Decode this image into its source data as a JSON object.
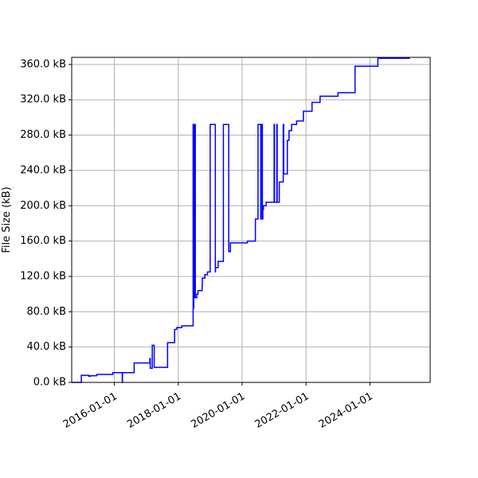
{
  "chart_data": {
    "type": "line",
    "title": "",
    "xlabel": "",
    "ylabel": "File Size (kB)",
    "x_type": "date",
    "xlim": [
      "2014-09-01",
      "2025-11-20"
    ],
    "ylim": [
      0,
      368
    ],
    "grid": true,
    "legend": "none",
    "colors": {
      "line": "#0000ff",
      "grid": "#b0b0b0",
      "axis": "#000000"
    },
    "x_ticks": [
      {
        "value": "2016-01-01",
        "label": "2016-01-01"
      },
      {
        "value": "2018-01-01",
        "label": "2018-01-01"
      },
      {
        "value": "2020-01-01",
        "label": "2020-01-01"
      },
      {
        "value": "2022-01-01",
        "label": "2022-01-01"
      },
      {
        "value": "2024-01-01",
        "label": "2024-01-01"
      }
    ],
    "y_ticks": [
      {
        "value": 0,
        "label": "0.0 kB"
      },
      {
        "value": 40,
        "label": "40.0 kB"
      },
      {
        "value": 80,
        "label": "80.0 kB"
      },
      {
        "value": 120,
        "label": "120.0 kB"
      },
      {
        "value": 160,
        "label": "160.0 kB"
      },
      {
        "value": 200,
        "label": "200.0 kB"
      },
      {
        "value": 240,
        "label": "240.0 kB"
      },
      {
        "value": 280,
        "label": "280.0 kB"
      },
      {
        "value": 320,
        "label": "320.0 kB"
      },
      {
        "value": 360,
        "label": "360.0 kB"
      }
    ],
    "series": [
      {
        "line_style": "step-post",
        "x": [
          "2014-09-01",
          "2014-12-20",
          "2015-03-15",
          "2015-04-01",
          "2015-06-15",
          "2015-12-15",
          "2016-04-01",
          "2016-04-03",
          "2016-08-15",
          "2017-02-10",
          "2017-02-15",
          "2017-03-10",
          "2017-04-01",
          "2017-04-20",
          "2017-09-01",
          "2017-11-20",
          "2017-12-15",
          "2018-02-10",
          "2018-06-20",
          "2018-06-25",
          "2018-06-28",
          "2018-07-01",
          "2018-07-10",
          "2018-07-15",
          "2018-08-01",
          "2018-08-15",
          "2018-10-01",
          "2018-10-03",
          "2018-11-01",
          "2018-12-01",
          "2019-01-01",
          "2019-03-01",
          "2019-03-03",
          "2019-04-01",
          "2019-06-01",
          "2019-08-01",
          "2019-08-10",
          "2019-08-20",
          "2020-03-01",
          "2020-06-01",
          "2020-07-01",
          "2020-08-01",
          "2020-08-05",
          "2020-08-20",
          "2020-08-25",
          "2020-09-01",
          "2020-10-01",
          "2020-11-01",
          "2021-01-01",
          "2021-01-05",
          "2021-02-01",
          "2021-02-05",
          "2021-03-01",
          "2021-04-15",
          "2021-04-20",
          "2021-06-01",
          "2021-06-20",
          "2021-07-20",
          "2021-09-15",
          "2021-12-01",
          "2022-03-10",
          "2022-06-10",
          "2023-01-01",
          "2023-07-15",
          "2023-10-01",
          "2024-04-01",
          "2025-04-01"
        ],
        "y": [
          0,
          8,
          7,
          7.5,
          9,
          11,
          0,
          11,
          22,
          27,
          16,
          42,
          17,
          17,
          45,
          60,
          62,
          64,
          292,
          84,
          292,
          96,
          292,
          96,
          100,
          104,
          110,
          118,
          122,
          125,
          292,
          125,
          130,
          137,
          292,
          148,
          148,
          158,
          160,
          185,
          292,
          185,
          292,
          185,
          196,
          200,
          204,
          204,
          292,
          204,
          292,
          204,
          227,
          292,
          236,
          274,
          285,
          292,
          296,
          307,
          317,
          324,
          328,
          358,
          358,
          367,
          367
        ]
      }
    ]
  }
}
